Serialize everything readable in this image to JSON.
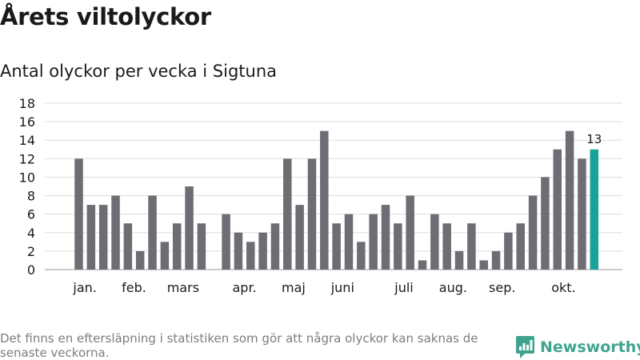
{
  "title": "Årets viltolyckor",
  "subtitle": "Antal olyckor per vecka i Sigtuna",
  "footnote": "Det finns en eftersläpning i statistiken som gör att några olyckor kan saknas de senaste veckorna.",
  "brand": {
    "name": "Newsworthy",
    "color": "#3fa48f"
  },
  "chart_data": {
    "type": "bar",
    "title": "",
    "xlabel": "",
    "ylabel": "",
    "ylim": [
      0,
      18
    ],
    "yticks": [
      0,
      2,
      4,
      6,
      8,
      10,
      12,
      14,
      16,
      18
    ],
    "grid": true,
    "bar_color": "#6e6d74",
    "highlight_color": "#17a398",
    "weeks": [
      1,
      2,
      3,
      4,
      5,
      6,
      7,
      8,
      9,
      10,
      11,
      12,
      13,
      14,
      15,
      16,
      17,
      18,
      19,
      20,
      21,
      22,
      23,
      24,
      25,
      26,
      27,
      28,
      29,
      30,
      31,
      32,
      33,
      34,
      35,
      36,
      37,
      38,
      39,
      40,
      41,
      42,
      43
    ],
    "values": [
      12,
      7,
      7,
      8,
      5,
      2,
      8,
      3,
      5,
      9,
      5,
      null,
      6,
      4,
      3,
      4,
      5,
      12,
      7,
      12,
      15,
      5,
      6,
      3,
      6,
      7,
      5,
      8,
      1,
      6,
      5,
      2,
      5,
      1,
      2,
      4,
      5,
      8,
      10,
      13,
      15,
      12,
      13
    ],
    "highlight_index": 42,
    "highlight_label": "13",
    "month_labels": [
      {
        "label": "jan.",
        "week": 1.5
      },
      {
        "label": "feb.",
        "week": 5.5
      },
      {
        "label": "mars",
        "week": 9.5
      },
      {
        "label": "apr.",
        "week": 14.5
      },
      {
        "label": "maj",
        "week": 18.5
      },
      {
        "label": "juni",
        "week": 22.5
      },
      {
        "label": "juli",
        "week": 27.5
      },
      {
        "label": "aug.",
        "week": 31.5
      },
      {
        "label": "sep.",
        "week": 35.5
      },
      {
        "label": "okt.",
        "week": 40.5
      }
    ]
  }
}
